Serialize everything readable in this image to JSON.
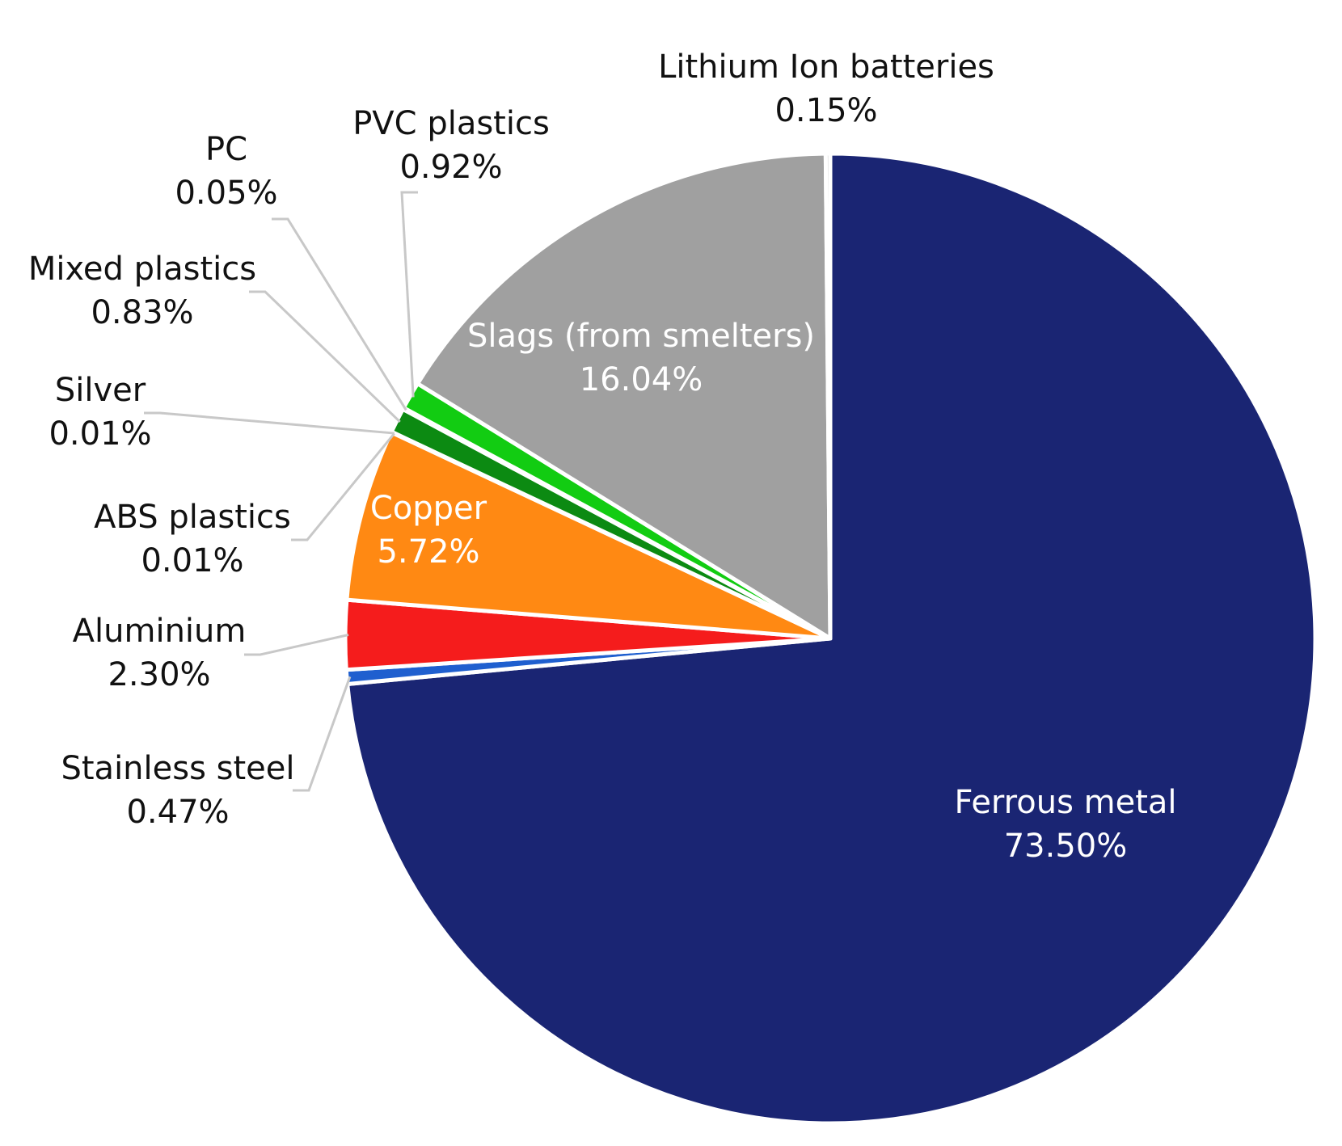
{
  "chart_data": {
    "type": "pie",
    "title": "",
    "start_angle_deg": 0,
    "direction": "clockwise",
    "unit": "%",
    "slices": [
      {
        "name": "Ferrous metal",
        "value": 73.5,
        "label": "73.50%",
        "color": "#1a2573",
        "label_placement": "inside"
      },
      {
        "name": "Stainless steel",
        "value": 0.47,
        "label": "0.47%",
        "color": "#1f5fcf",
        "label_placement": "outside"
      },
      {
        "name": "Aluminium",
        "value": 2.3,
        "label": "2.30%",
        "color": "#f51c1c",
        "label_placement": "outside"
      },
      {
        "name": "Copper",
        "value": 5.72,
        "label": "5.72%",
        "color": "#ff8913",
        "label_placement": "inside"
      },
      {
        "name": "ABS plastics",
        "value": 0.01,
        "label": "0.01%",
        "color": "#0a5f0a",
        "label_placement": "outside"
      },
      {
        "name": "Silver",
        "value": 0.01,
        "label": "0.01%",
        "color": "#c0c0c0",
        "label_placement": "outside"
      },
      {
        "name": "Mixed plastics",
        "value": 0.83,
        "label": "0.83%",
        "color": "#0c8a12",
        "label_placement": "outside"
      },
      {
        "name": "PC",
        "value": 0.05,
        "label": "0.05%",
        "color": "#3cd83c",
        "label_placement": "outside"
      },
      {
        "name": "PVC plastics",
        "value": 0.92,
        "label": "0.92%",
        "color": "#12cc12",
        "label_placement": "outside"
      },
      {
        "name": "Slags (from smelters)",
        "value": 16.04,
        "label": "16.04%",
        "color": "#a0a0a0",
        "label_placement": "inside"
      },
      {
        "name": "Lithium Ion batteries",
        "value": 0.15,
        "label": "0.15%",
        "color": "#d8d8d8",
        "label_placement": "outside"
      }
    ],
    "leader_line_color": "#c8c8c8"
  }
}
